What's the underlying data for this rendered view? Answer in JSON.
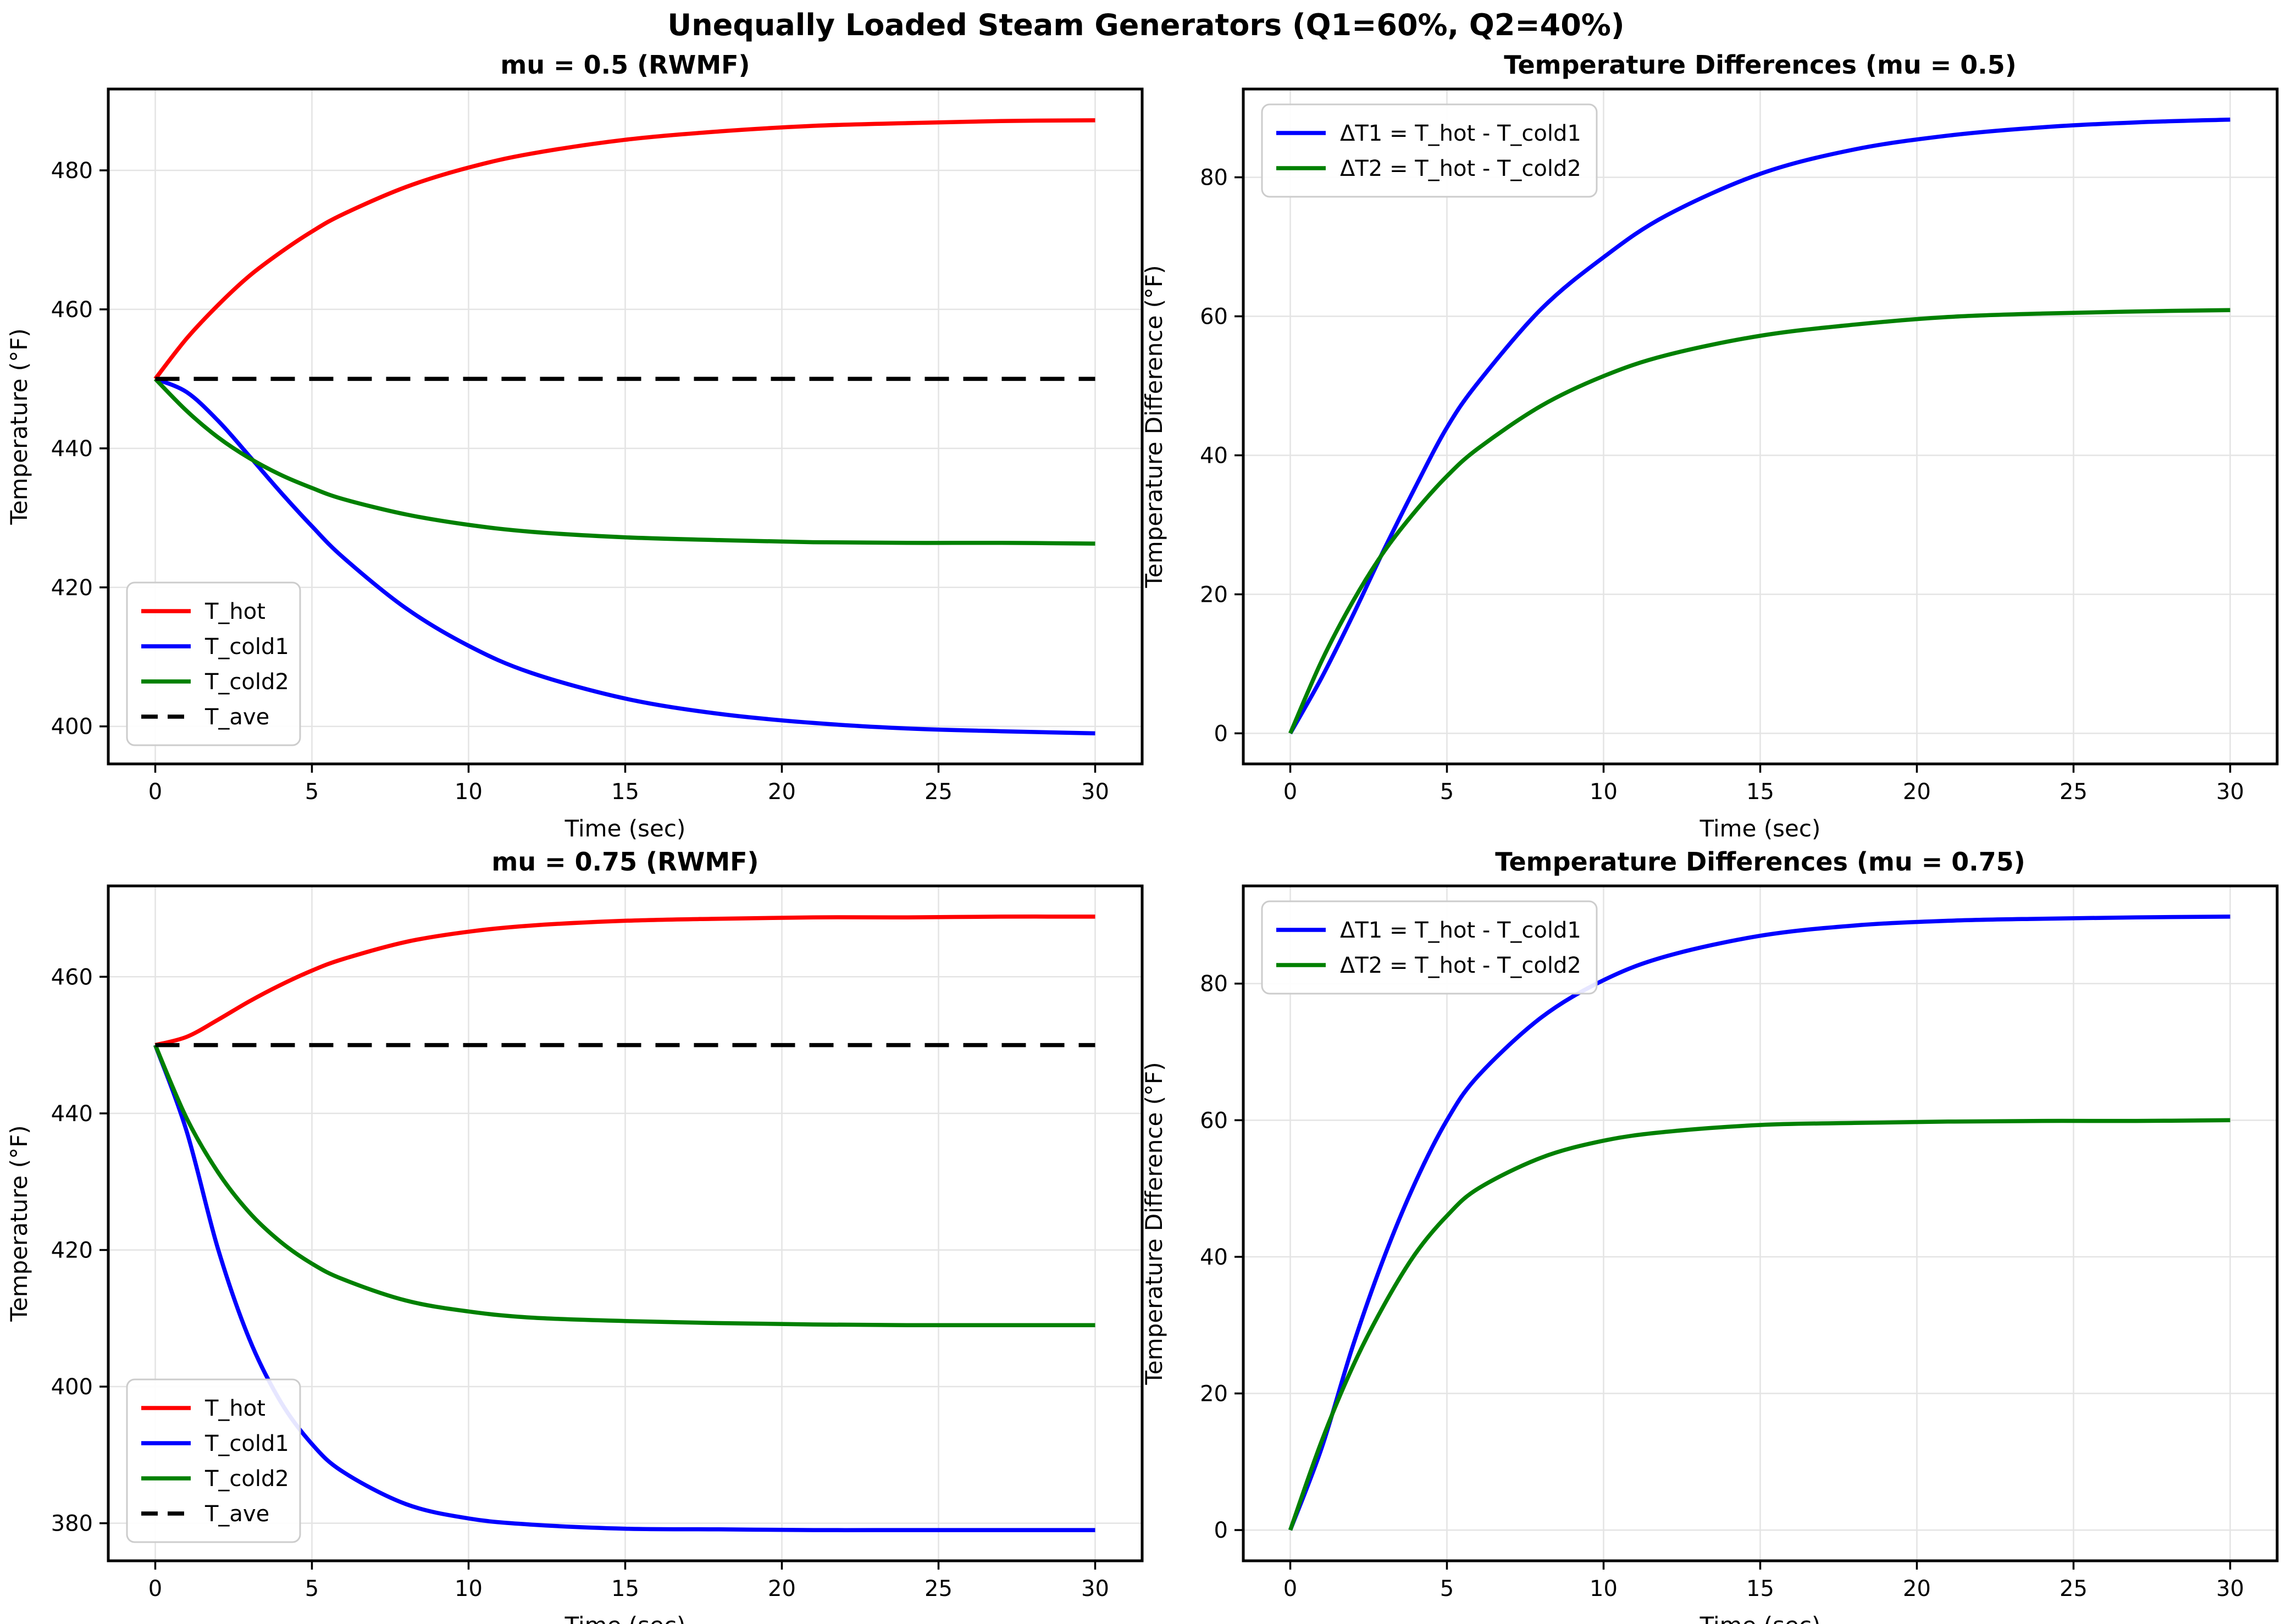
{
  "suptitle": "Unequally Loaded Steam Generators (Q1=60%, Q2=40%)",
  "colors": {
    "t_hot": "#ff0000",
    "t_cold1": "#0000ff",
    "t_cold2": "#008000",
    "t_ave": "#000000",
    "grid": "#e4e4e4",
    "spine": "#000000",
    "legend_border": "#cccccc",
    "background": "#ffffff"
  },
  "chart_data": [
    {
      "id": "mu05-temps",
      "type": "line",
      "title": "mu = 0.5 (RWMF)",
      "xlabel": "Time (sec)",
      "ylabel": "Temperature (°F)",
      "xlim": [
        -1.5,
        31.5
      ],
      "ylim": [
        394.6,
        491.7
      ],
      "xticks": [
        0,
        5,
        10,
        15,
        20,
        25,
        30
      ],
      "yticks": [
        400,
        420,
        440,
        460,
        480
      ],
      "grid": true,
      "legend_loc": "lower-left",
      "x": [
        0,
        1,
        2,
        3,
        4,
        5,
        6,
        8,
        10,
        12,
        15,
        18,
        21,
        24,
        27,
        30
      ],
      "series": [
        {
          "name": "T_hot",
          "label": "T_hot",
          "color": "#ff0000",
          "dash": false,
          "values": [
            450,
            455.8,
            460.6,
            464.8,
            468.2,
            471.2,
            473.7,
            477.6,
            480.4,
            482.4,
            484.4,
            485.6,
            486.4,
            486.8,
            487.1,
            487.2
          ]
        },
        {
          "name": "T_cold1",
          "label": "T_cold1",
          "color": "#0000ff",
          "dash": false,
          "values": [
            450,
            448.1,
            444.0,
            438.9,
            433.7,
            428.8,
            424.3,
            417.0,
            411.6,
            407.7,
            404.0,
            401.8,
            400.5,
            399.7,
            399.3,
            399.0
          ]
        },
        {
          "name": "T_cold2",
          "label": "T_cold2",
          "color": "#008000",
          "dash": false,
          "values": [
            450,
            445.4,
            441.6,
            438.6,
            436.2,
            434.3,
            432.7,
            430.5,
            429.0,
            428.0,
            427.2,
            426.8,
            426.5,
            426.4,
            426.4,
            426.3
          ]
        },
        {
          "name": "T_ave",
          "label": "T_ave",
          "color": "#000000",
          "dash": true,
          "values": [
            450,
            450,
            450,
            450,
            450,
            450,
            450,
            450,
            450,
            450,
            450,
            450,
            450,
            450,
            450,
            450
          ]
        }
      ]
    },
    {
      "id": "mu05-diffs",
      "type": "line",
      "title": "Temperature Differences (mu = 0.5)",
      "xlabel": "Time (sec)",
      "ylabel": "Temperature Difference (°F)",
      "xlim": [
        -1.5,
        31.5
      ],
      "ylim": [
        -4.4,
        92.7
      ],
      "xticks": [
        0,
        5,
        10,
        15,
        20,
        25,
        30
      ],
      "yticks": [
        0,
        20,
        40,
        60,
        80
      ],
      "grid": true,
      "legend_loc": "upper-left",
      "x": [
        0,
        1,
        2,
        3,
        4,
        5,
        6,
        8,
        10,
        12,
        15,
        18,
        21,
        24,
        27,
        30
      ],
      "series": [
        {
          "name": "dT1",
          "label": "ΔT1 = T_hot - T_cold1",
          "color": "#0000ff",
          "dash": false,
          "values": [
            0,
            8,
            17,
            26.5,
            35.5,
            44,
            50.5,
            61,
            68.5,
            74.5,
            80.5,
            84,
            86,
            87.2,
            87.9,
            88.3
          ]
        },
        {
          "name": "dT2",
          "label": "ΔT2 = T_hot - T_cold2",
          "color": "#008000",
          "dash": false,
          "values": [
            0,
            10.4,
            19,
            26.2,
            32,
            37,
            41,
            47.1,
            51.4,
            54.4,
            57.2,
            58.8,
            59.9,
            60.4,
            60.7,
            60.9
          ]
        }
      ]
    },
    {
      "id": "mu075-temps",
      "type": "line",
      "title": "mu = 0.75 (RWMF)",
      "xlabel": "Time (sec)",
      "ylabel": "Temperature (°F)",
      "xlim": [
        -1.5,
        31.5
      ],
      "ylim": [
        374.5,
        473.3
      ],
      "xticks": [
        0,
        5,
        10,
        15,
        20,
        25,
        30
      ],
      "yticks": [
        380,
        400,
        420,
        440,
        460
      ],
      "grid": true,
      "legend_loc": "lower-left",
      "x": [
        0,
        1,
        2,
        3,
        4,
        5,
        6,
        8,
        10,
        12,
        15,
        18,
        21,
        24,
        27,
        30
      ],
      "series": [
        {
          "name": "T_hot",
          "label": "T_hot",
          "color": "#ff0000",
          "dash": false,
          "values": [
            450,
            451.2,
            453.7,
            456.4,
            458.8,
            460.9,
            462.6,
            465.1,
            466.6,
            467.5,
            468.2,
            468.5,
            468.7,
            468.7,
            468.8,
            468.8
          ]
        },
        {
          "name": "T_cold1",
          "label": "T_cold1",
          "color": "#0000ff",
          "dash": false,
          "values": [
            450,
            437.4,
            420.2,
            407.0,
            397.8,
            391.6,
            387.5,
            382.8,
            380.7,
            379.8,
            379.2,
            379.1,
            379.0,
            379.0,
            379.0,
            379.0
          ]
        },
        {
          "name": "T_cold2",
          "label": "T_cold2",
          "color": "#008000",
          "dash": false,
          "values": [
            450,
            439.3,
            431.4,
            425.5,
            421.2,
            418.0,
            415.7,
            412.6,
            411.0,
            410.1,
            409.6,
            409.3,
            409.1,
            409.0,
            409.0,
            409.0
          ]
        },
        {
          "name": "T_ave",
          "label": "T_ave",
          "color": "#000000",
          "dash": true,
          "values": [
            450,
            450,
            450,
            450,
            450,
            450,
            450,
            450,
            450,
            450,
            450,
            450,
            450,
            450,
            450,
            450
          ]
        }
      ]
    },
    {
      "id": "mu075-diffs",
      "type": "line",
      "title": "Temperature Differences (mu = 0.75)",
      "xlabel": "Time (sec)",
      "ylabel": "Temperature Difference (°F)",
      "xlim": [
        -1.5,
        31.5
      ],
      "ylim": [
        -4.5,
        94.3
      ],
      "xticks": [
        0,
        5,
        10,
        15,
        20,
        25,
        30
      ],
      "yticks": [
        0,
        20,
        40,
        60,
        80
      ],
      "grid": true,
      "legend_loc": "upper-left",
      "x": [
        0,
        1,
        2,
        3,
        4,
        5,
        6,
        8,
        10,
        12,
        15,
        18,
        21,
        24,
        27,
        30
      ],
      "series": [
        {
          "name": "dT1",
          "label": "ΔT1 = T_hot - T_cold1",
          "color": "#0000ff",
          "dash": false,
          "values": [
            0,
            12,
            27,
            40,
            51,
            60,
            66.5,
            75,
            80.5,
            84,
            87,
            88.5,
            89.2,
            89.5,
            89.7,
            89.8
          ]
        },
        {
          "name": "dT2",
          "label": "ΔT2 = T_hot - T_cold2",
          "color": "#008000",
          "dash": false,
          "values": [
            0,
            13,
            24,
            33,
            40.5,
            46,
            50,
            54.5,
            57,
            58.3,
            59.3,
            59.6,
            59.8,
            59.9,
            59.9,
            60
          ]
        }
      ]
    }
  ]
}
